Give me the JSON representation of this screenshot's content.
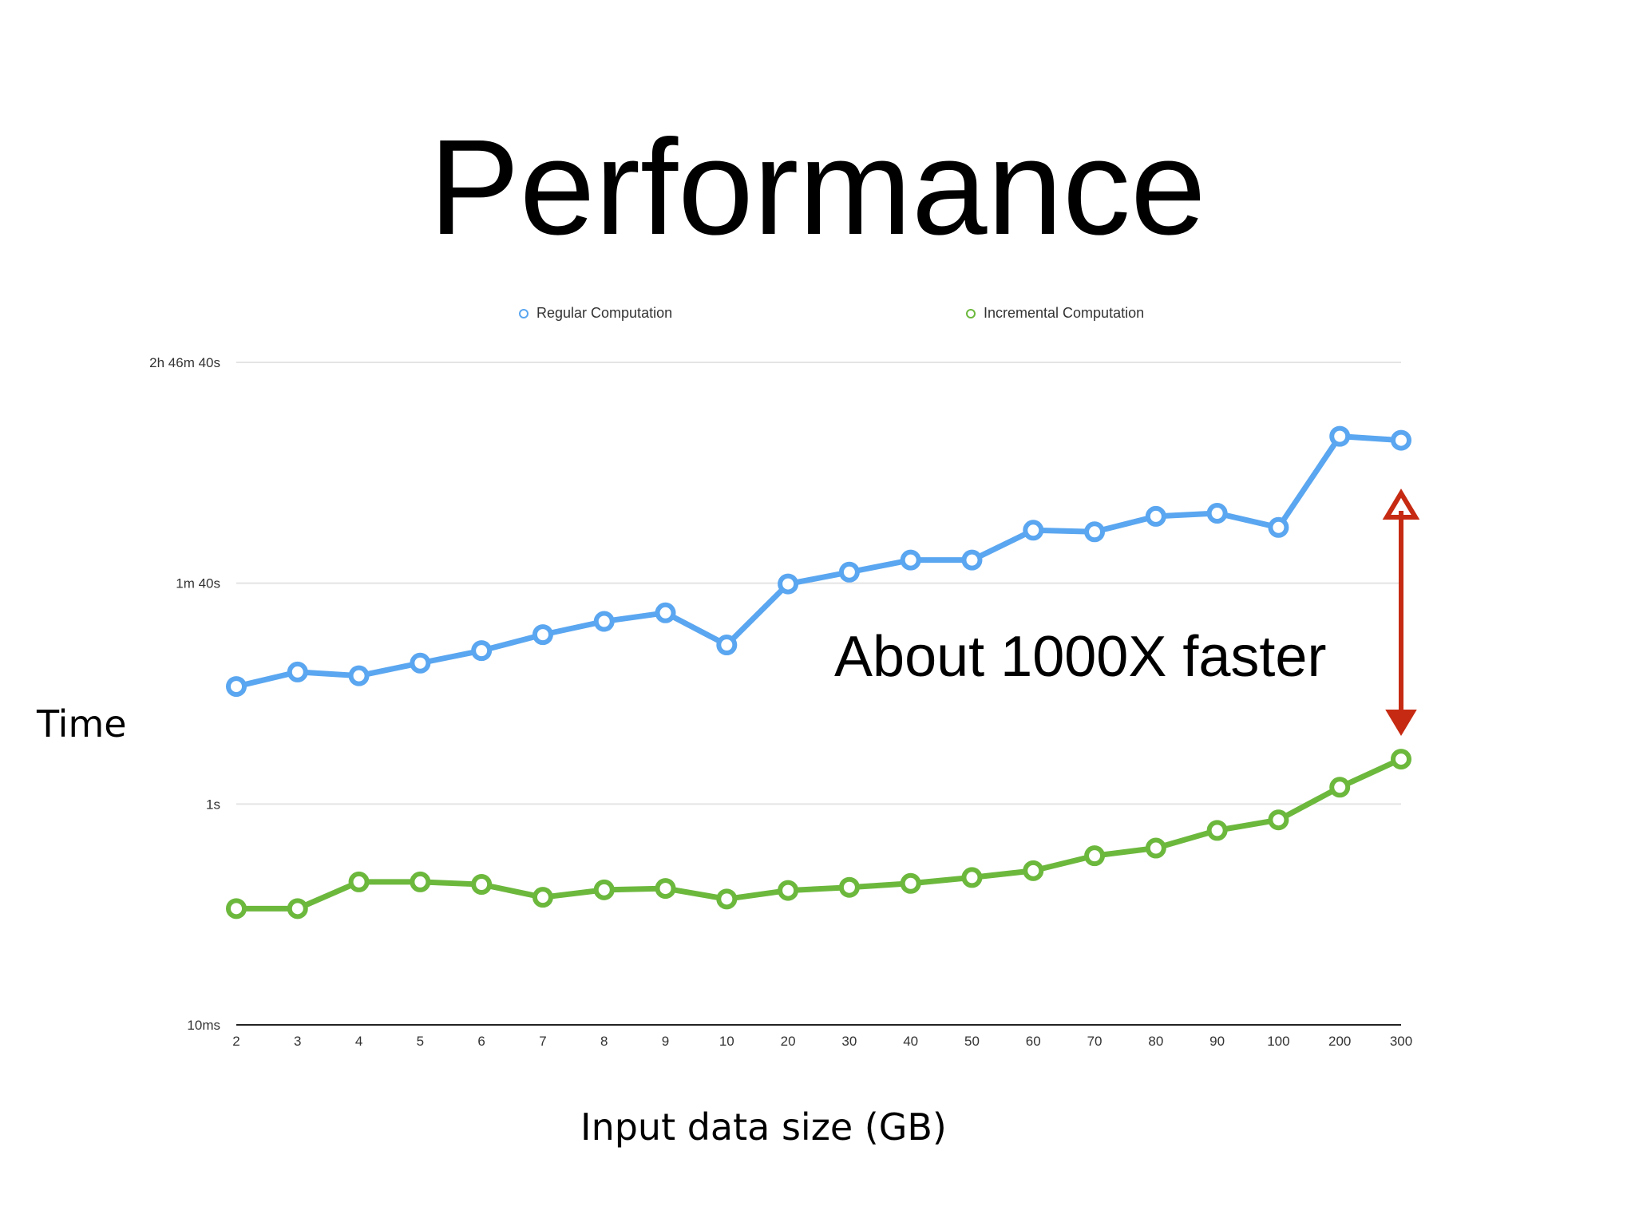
{
  "slide": {
    "title": "Performance",
    "annotation": "About 1000X faster"
  },
  "colors": {
    "regular": "#5aa6f0",
    "incremental": "#6cb83d",
    "arrow": "#c62a12",
    "grid": "#e4e4e4",
    "axis": "#222222"
  },
  "chart_data": {
    "type": "line",
    "ylabel": "Time",
    "xlabel": "Input data size (GB)",
    "y_scale": "log",
    "ylim": [
      0.01,
      10000
    ],
    "y_ticks": [
      {
        "value": 0.01,
        "label": "10ms"
      },
      {
        "value": 1,
        "label": "1s"
      },
      {
        "value": 100,
        "label": "1m 40s"
      },
      {
        "value": 10000,
        "label": "2h 46m 40s"
      }
    ],
    "categories": [
      "2",
      "3",
      "4",
      "5",
      "6",
      "7",
      "8",
      "9",
      "10",
      "20",
      "30",
      "40",
      "50",
      "60",
      "70",
      "80",
      "90",
      "100",
      "200",
      "300"
    ],
    "grid": true,
    "legend_position": "top",
    "series": [
      {
        "name": "Regular Computation",
        "color": "#5aa6f0",
        "values": [
          11.6,
          15.7,
          14.5,
          18.9,
          24.5,
          34.2,
          45.1,
          53.9,
          27.6,
          98.5,
          126,
          162,
          162,
          302,
          292,
          403,
          430,
          320,
          2140,
          1970
        ]
      },
      {
        "name": "Incremental Computation",
        "color": "#6cb83d",
        "values": [
          0.113,
          0.113,
          0.197,
          0.197,
          0.187,
          0.143,
          0.167,
          0.172,
          0.138,
          0.165,
          0.176,
          0.191,
          0.216,
          0.249,
          0.34,
          0.399,
          0.577,
          0.718,
          1.42,
          2.55
        ]
      }
    ]
  }
}
